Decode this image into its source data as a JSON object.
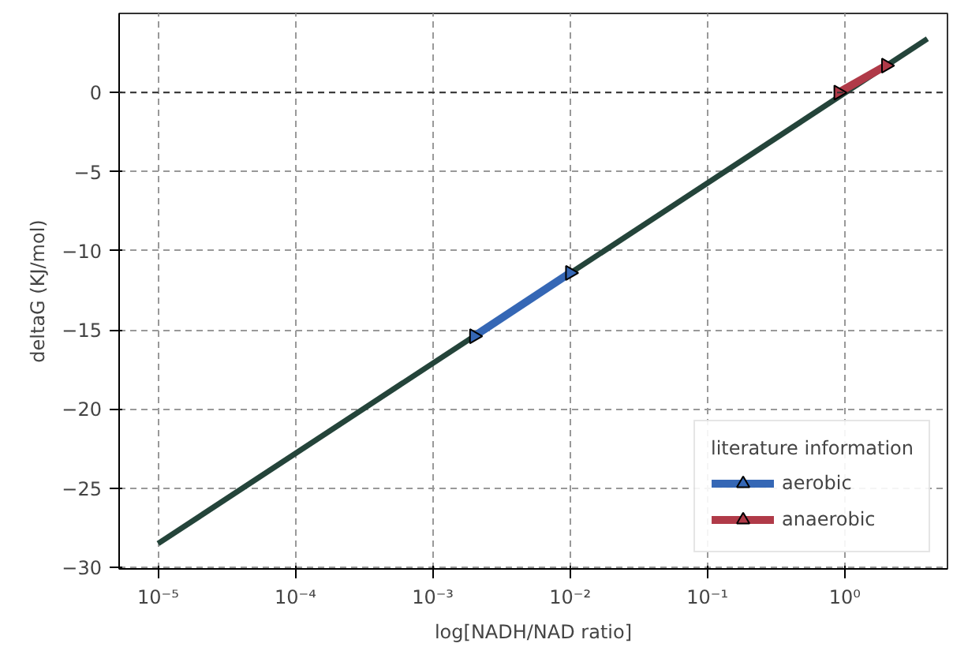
{
  "chart_data": {
    "type": "line",
    "xlabel": "log[NADH/NAD ratio]",
    "ylabel": "deltaG (KJ/mol)",
    "log": "x",
    "xlim": [
      5.2e-06,
      5.6
    ],
    "ylim": [
      -30.1,
      5.0
    ],
    "xticks": [
      {
        "value": 1e-05,
        "label": "10⁻⁵"
      },
      {
        "value": 0.0001,
        "label": "10⁻⁴"
      },
      {
        "value": 0.001,
        "label": "10⁻³"
      },
      {
        "value": 0.01,
        "label": "10⁻²"
      },
      {
        "value": 0.1,
        "label": "10⁻¹"
      },
      {
        "value": 1,
        "label": "10⁰"
      }
    ],
    "yticks": [
      {
        "value": -30,
        "label": "−30"
      },
      {
        "value": -25,
        "label": "−25"
      },
      {
        "value": -20,
        "label": "−20"
      },
      {
        "value": -15,
        "label": "−15"
      },
      {
        "value": -10,
        "label": "−10"
      },
      {
        "value": -5,
        "label": "−5"
      },
      0
    ],
    "series": [
      {
        "color": "#24443a",
        "x": [
          1e-05,
          4
        ],
        "values": [
          -28.5,
          3.4
        ],
        "marker": "none"
      },
      {
        "name": "aerobic",
        "color": "#3567b5",
        "x": [
          0.002,
          0.01
        ],
        "values": [
          -15.4,
          -11.4
        ],
        "marker": "triangle"
      },
      {
        "name": "anaerobic",
        "color": "#b03a48",
        "x": [
          0.9,
          2
        ],
        "values": [
          0.0,
          1.7
        ],
        "marker": "triangle"
      }
    ],
    "ref_lines": [
      {
        "axis": "y",
        "value": 0,
        "color": "#333333",
        "line_style": "dashed"
      }
    ],
    "grid": true,
    "legend": "bottom right",
    "legend_title": "literature information"
  }
}
